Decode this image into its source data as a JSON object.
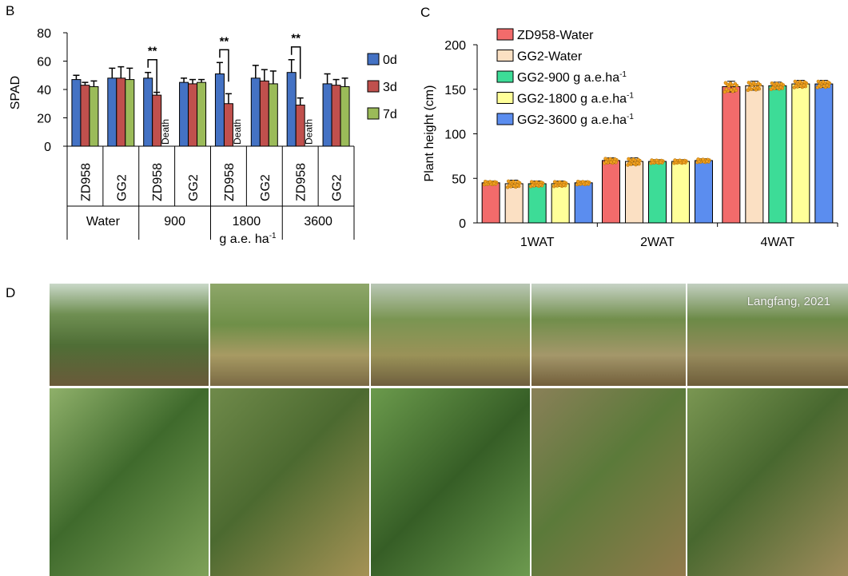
{
  "panels": {
    "b": "B",
    "c": "C",
    "d": "D"
  },
  "chart_data": [
    {
      "type": "bar",
      "panel": "B",
      "ylabel": "SPAD",
      "xlabel": "g a.e. ha",
      "xlabel_sup": "-1",
      "ylim": [
        0,
        80
      ],
      "yticks": [
        "0",
        "20",
        "40",
        "60",
        "80"
      ],
      "groups": [
        "Water",
        "900",
        "1800",
        "3600"
      ],
      "categories": [
        "ZD958",
        "GG2",
        "ZD958",
        "GG2",
        "ZD958",
        "GG2",
        "ZD958",
        "GG2"
      ],
      "legend_position": "right",
      "series": [
        {
          "name": "0d",
          "color": "#4472c4",
          "values": [
            47,
            48,
            48,
            45,
            51,
            48,
            52,
            44
          ],
          "errors": [
            3,
            7,
            4,
            3,
            8,
            9,
            9,
            7
          ]
        },
        {
          "name": "3d",
          "color": "#c0504d",
          "values": [
            43,
            48,
            36,
            44,
            30,
            46,
            29,
            43
          ],
          "errors": [
            2,
            8,
            2,
            3,
            7,
            8,
            5,
            4
          ]
        },
        {
          "name": "7d",
          "color": "#9bbb59",
          "values": [
            42,
            47,
            null,
            45,
            null,
            44,
            null,
            42
          ],
          "errors": [
            4,
            8,
            0,
            2,
            0,
            9,
            0,
            6
          ]
        }
      ],
      "annotations": [
        {
          "category_index": 2,
          "sig": "**",
          "dead": "Death"
        },
        {
          "category_index": 4,
          "sig": "**",
          "dead": "Death"
        },
        {
          "category_index": 6,
          "sig": "**",
          "dead": "Death"
        }
      ]
    },
    {
      "type": "bar",
      "panel": "C",
      "ylabel": "Plant height (cm)",
      "ylim": [
        0,
        200
      ],
      "yticks": [
        "0",
        "50",
        "100",
        "150",
        "200"
      ],
      "categories": [
        "1WAT",
        "2WAT",
        "4WAT"
      ],
      "legend_position": "top-left",
      "series": [
        {
          "name": "ZD958-Water",
          "color": "#f26b6b",
          "values": [
            45,
            70,
            153
          ],
          "errors": [
            2,
            3,
            6
          ]
        },
        {
          "name": "GG2-Water",
          "color": "#fbe0c3",
          "values": [
            44,
            69,
            154
          ],
          "errors": [
            4,
            4,
            5
          ]
        },
        {
          "name": "GG2-900 g a.e.ha",
          "sup": "-1",
          "color": "#3ddc97",
          "values": [
            44,
            69,
            154
          ],
          "errors": [
            3,
            2,
            4
          ]
        },
        {
          "name": "GG2-1800 g a.e.ha",
          "sup": "-1",
          "color": "#ffff99",
          "values": [
            44,
            69,
            156
          ],
          "errors": [
            3,
            2,
            4
          ]
        },
        {
          "name": "GG2-3600 g a.e.ha",
          "sup": "-1",
          "color": "#5b8def",
          "values": [
            45,
            70,
            156
          ],
          "errors": [
            2,
            2,
            4
          ]
        }
      ]
    }
  ],
  "photos": {
    "watermark": "Langfang, 2021",
    "columns": 5
  }
}
